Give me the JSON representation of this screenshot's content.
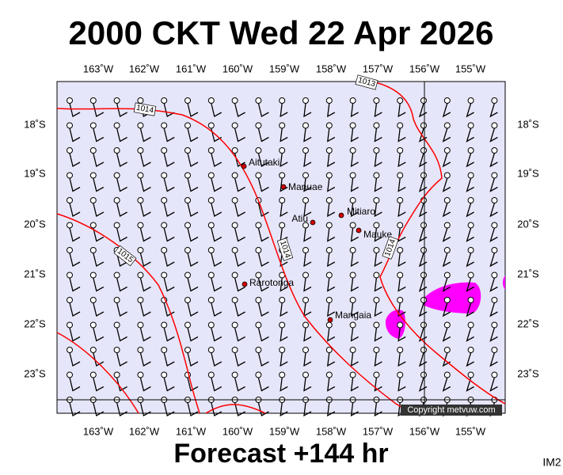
{
  "header": {
    "title": "2000 CKT Wed 22 Apr 2026"
  },
  "map": {
    "longitudes": [
      "163˚W",
      "162˚W",
      "161˚W",
      "160˚W",
      "159˚W",
      "158˚W",
      "157˚W",
      "156˚W",
      "155˚W"
    ],
    "latitudes": [
      "18˚S",
      "19˚S",
      "20˚S",
      "21˚S",
      "22˚S",
      "23˚S"
    ],
    "places": [
      "Aitutaki",
      "Manuae",
      "Atiu",
      "Mitiaro",
      "Mauke",
      "Rarotonga",
      "Mangaia"
    ],
    "isobar_labels": [
      "1013",
      "1014",
      "1014",
      "1015",
      "1014"
    ]
  },
  "footer": {
    "forecast": "Forecast +144 hr",
    "code": "IM2",
    "copyright": "Copyright metvuw.com"
  }
}
